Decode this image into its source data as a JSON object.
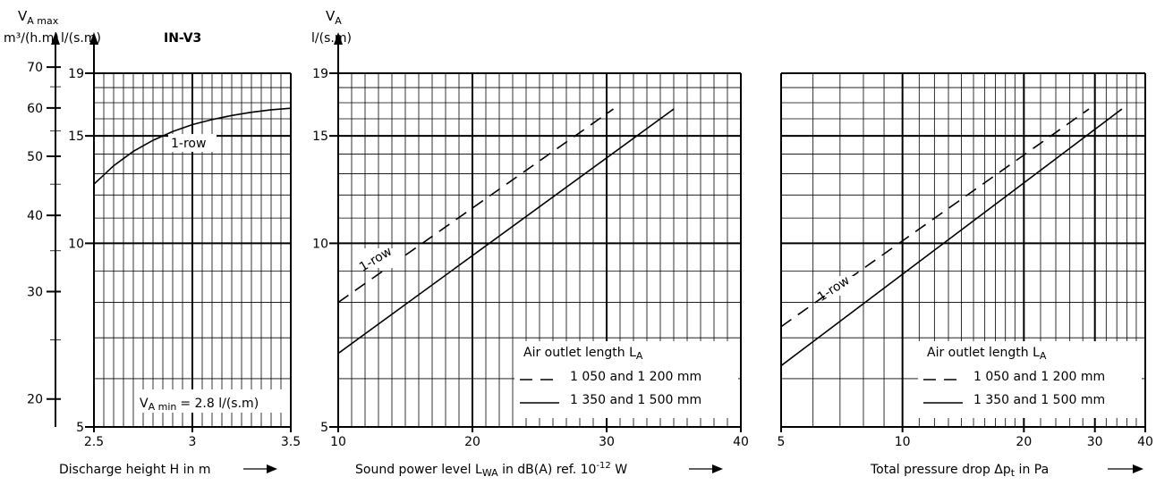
{
  "chart_data": [
    {
      "type": "line",
      "title": "IN-V3",
      "y_axis_left_title": "V",
      "y_axis_left_title_sub": "A max",
      "y_axis_left_unit": "m³/(h.m)",
      "y_axis_right_unit": "l/(s.m)",
      "x_label": "Discharge height H in m",
      "xlim": [
        2.5,
        3.5
      ],
      "x_ticks": [
        "2.5",
        "3",
        "3.5"
      ],
      "ylim_ls": [
        5,
        19
      ],
      "y_ticks_ls": [
        "5",
        "10",
        "15",
        "19"
      ],
      "y_ticks_m3": [
        "20",
        "30",
        "40",
        "50",
        "60",
        "70"
      ],
      "scale": "log",
      "grid": true,
      "annotation_min_prefix": "V",
      "annotation_min_sub": "A min",
      "annotation_min_value": "= 2.8 l/(s.m)",
      "series": [
        {
          "name": "1-row",
          "x": [
            2.5,
            2.6,
            2.7,
            2.8,
            2.9,
            3.0,
            3.1,
            3.2,
            3.3,
            3.4,
            3.5
          ],
          "y": [
            12.5,
            13.4,
            14.15,
            14.75,
            15.25,
            15.65,
            15.95,
            16.2,
            16.4,
            16.55,
            16.65
          ]
        }
      ]
    },
    {
      "type": "line",
      "y_axis_title": "V",
      "y_axis_title_sub": "A",
      "y_axis_unit": "l/(s.m)",
      "x_label_pre": "Sound power level L",
      "x_label_sub": "WA",
      "x_label_mid": " in dB(A) ref. 10",
      "x_label_sup": "-12",
      "x_label_post": " W",
      "xlim": [
        10,
        40
      ],
      "x_ticks": [
        "10",
        "20",
        "30",
        "40"
      ],
      "ylim": [
        5,
        19
      ],
      "y_ticks": [
        "5",
        "10",
        "15",
        "19"
      ],
      "scale": "log",
      "grid": true,
      "annotation": "1-row",
      "legend_title_pre": "Air outlet length L",
      "legend_title_sub": "A",
      "series": [
        {
          "name": "1 050 and 1 200 mm",
          "style": "dashed",
          "x": [
            10,
            30.5
          ],
          "y": [
            8.0,
            16.6
          ]
        },
        {
          "name": "1 350 and 1 500 mm",
          "style": "solid",
          "x": [
            10,
            35
          ],
          "y": [
            6.6,
            16.6
          ]
        }
      ]
    },
    {
      "type": "line",
      "x_label_pre": "Total pressure drop Δp",
      "x_label_sub": "t",
      "x_label_post": " in Pa",
      "xlim": [
        5,
        40
      ],
      "x_ticks": [
        "5",
        "10",
        "20",
        "30",
        "40"
      ],
      "ylim": [
        5,
        19
      ],
      "scale": "log-log",
      "grid": true,
      "annotation": "1-row",
      "legend_title_pre": "Air outlet length L",
      "legend_title_sub": "A",
      "series": [
        {
          "name": "1 050 and 1 200 mm",
          "style": "dashed",
          "x": [
            5,
            29
          ],
          "y": [
            7.3,
            16.6
          ]
        },
        {
          "name": "1 350 and 1 500 mm",
          "style": "solid",
          "x": [
            5,
            35
          ],
          "y": [
            6.3,
            16.6
          ]
        }
      ]
    }
  ]
}
